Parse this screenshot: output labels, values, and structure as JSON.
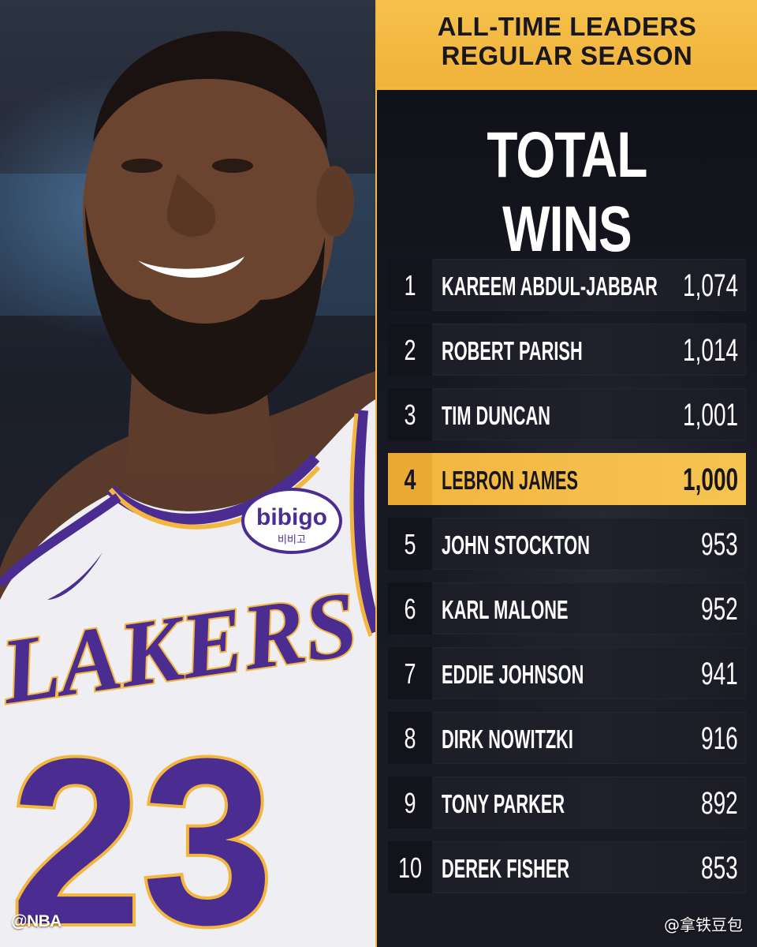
{
  "header": {
    "line1": "ALL-TIME LEADERS",
    "line2": "REGULAR SEASON"
  },
  "stat_title": "TOTAL WINS",
  "leaders": [
    {
      "rank": "1",
      "name": "KAREEM ABDUL-JABBAR",
      "wins": "1,074"
    },
    {
      "rank": "2",
      "name": "ROBERT PARISH",
      "wins": "1,014"
    },
    {
      "rank": "3",
      "name": "TIM DUNCAN",
      "wins": "1,001"
    },
    {
      "rank": "4",
      "name": "LEBRON JAMES",
      "wins": "1,000"
    },
    {
      "rank": "5",
      "name": "JOHN STOCKTON",
      "wins": "953"
    },
    {
      "rank": "6",
      "name": "KARL MALONE",
      "wins": "952"
    },
    {
      "rank": "7",
      "name": "EDDIE JOHNSON",
      "wins": "941"
    },
    {
      "rank": "8",
      "name": "DIRK NOWITZKI",
      "wins": "916"
    },
    {
      "rank": "9",
      "name": "TONY PARKER",
      "wins": "892"
    },
    {
      "rank": "10",
      "name": "DEREK FISHER",
      "wins": "853"
    }
  ],
  "highlighted_rank": "4",
  "photo": {
    "jersey_text": "LAKERS",
    "jersey_number": "23",
    "patch_text": "bibigo",
    "patch_subtext": "비비고"
  },
  "watermarks": {
    "left": "@NBA",
    "right": "@拿铁豆包"
  },
  "colors": {
    "accent_gold": "#f3b740",
    "panel_dark": "#15161d",
    "jersey_purple": "#4b2c91"
  }
}
